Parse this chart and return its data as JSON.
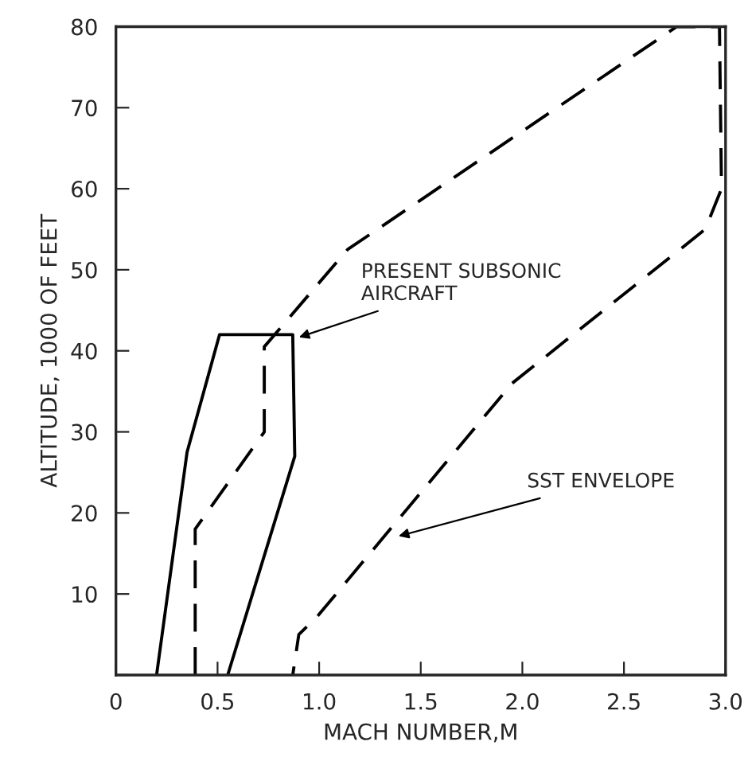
{
  "chart_data": {
    "type": "line",
    "xlabel": "MACH NUMBER,M",
    "ylabel": "ALTITUDE, 1000 OF FEET",
    "series": [
      {
        "color": "#000000",
        "line_style": "solid",
        "x": [
          0.2,
          0.35,
          0.51,
          0.87,
          0.88,
          0.55
        ],
        "values": [
          0,
          27.5,
          42,
          42,
          27,
          0
        ]
      },
      {
        "color": "#000000",
        "line_style": "dashed",
        "x": [
          0.39,
          0.39,
          0.73,
          0.73,
          1.14,
          2.76,
          2.97,
          2.98,
          2.9,
          1.95,
          0.99,
          0.9,
          0.87
        ],
        "values": [
          0,
          18,
          30,
          40.5,
          52.5,
          80,
          80,
          60,
          55,
          36,
          7.2,
          5,
          0
        ]
      }
    ],
    "annotations": [
      {
        "text": "PRESENT SUBSONIC\nAIRCRAFT",
        "x": 0.88,
        "y": 41.5
      },
      {
        "text": "SST ENVELOPE",
        "x": 1.37,
        "y": 17
      }
    ],
    "xlim": [
      0,
      3.0
    ],
    "ylim": [
      0,
      80
    ],
    "xticks": [
      0,
      0.5,
      {
        "value": 1,
        "label": "1.0"
      },
      1.5,
      {
        "value": 2,
        "label": "2.0"
      },
      2.5,
      {
        "value": 3,
        "label": "3.0"
      }
    ],
    "yticks": [
      {
        "value": 0,
        "label": null
      },
      10,
      20,
      30,
      40,
      50,
      60,
      70,
      80
    ],
    "grid": false,
    "legend": false
  }
}
